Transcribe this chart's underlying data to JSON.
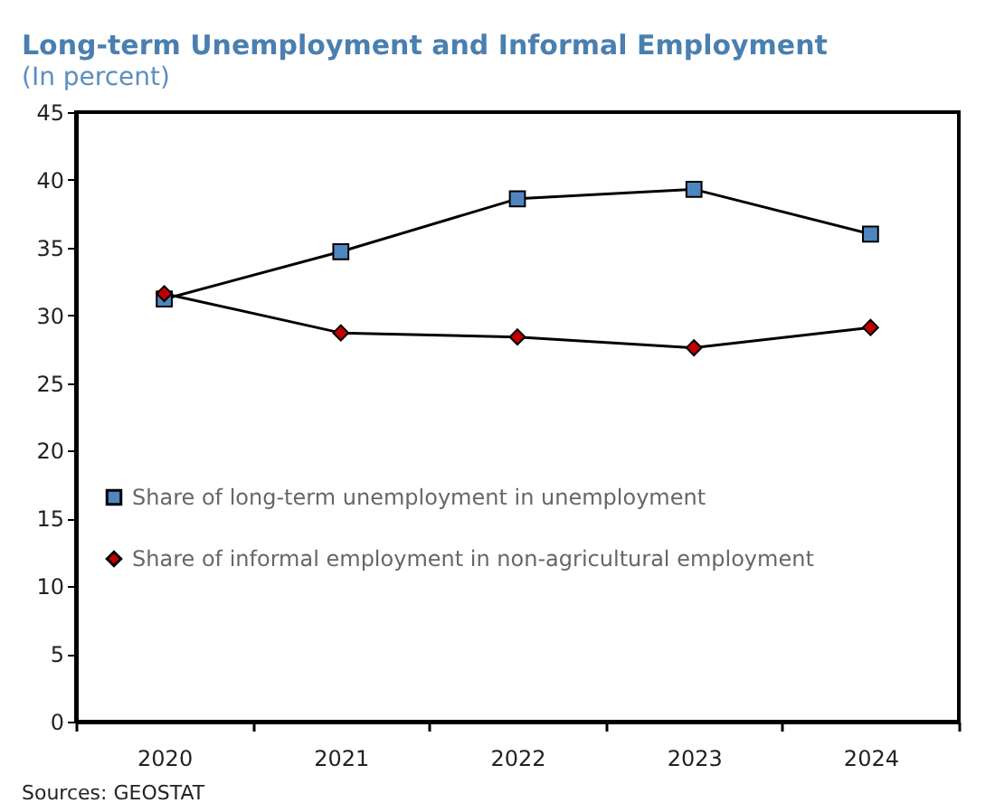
{
  "chart_data": {
    "type": "line",
    "title": "Long-term Unemployment and Informal Employment",
    "subtitle": "(In percent)",
    "categories": [
      "2020",
      "2021",
      "2022",
      "2023",
      "2024"
    ],
    "series": [
      {
        "name": "Share of long-term unemployment in unemployment",
        "color": "#4f86c0",
        "marker": "square",
        "values": [
          31.2,
          34.7,
          38.6,
          39.3,
          36.0
        ]
      },
      {
        "name": "Share of informal employment in non-agricultural employment",
        "color": "#c00000",
        "marker": "diamond",
        "values": [
          31.6,
          28.7,
          28.4,
          27.6,
          29.1
        ]
      }
    ],
    "ylim": [
      0,
      45
    ],
    "yticks": [
      0,
      5,
      10,
      15,
      20,
      25,
      30,
      35,
      40,
      45
    ],
    "grid": false,
    "legend": "bottom left",
    "line_style": "solid",
    "annotations": [
      "Sources: GEOSTAT"
    ]
  }
}
